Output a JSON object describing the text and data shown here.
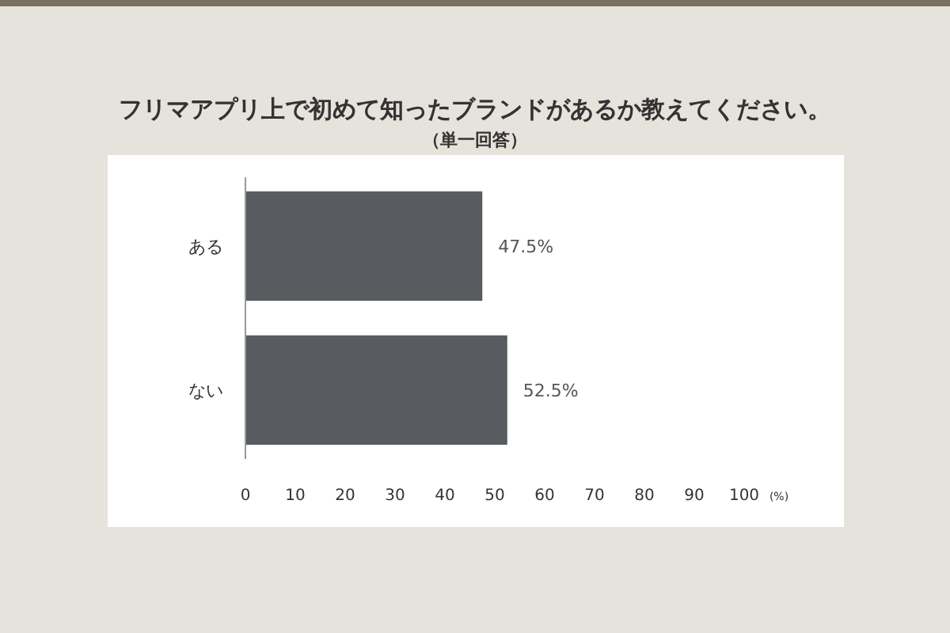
{
  "chart_data": {
    "type": "bar",
    "orientation": "horizontal",
    "title": "フリマアプリ上で初めて知ったブランドがあるか教えてください。",
    "subtitle": "（単一回答）",
    "xlabel": "(%)",
    "categories": [
      "ある",
      "ない"
    ],
    "series": [
      {
        "color": "#585b60",
        "values": [
          47.5,
          52.5
        ]
      }
    ],
    "value_labels": [
      "47.5%",
      "52.5%"
    ],
    "xlim": [
      0,
      100
    ],
    "xticks": [
      0,
      10,
      20,
      30,
      40,
      50,
      60,
      70,
      80,
      90,
      100
    ]
  }
}
